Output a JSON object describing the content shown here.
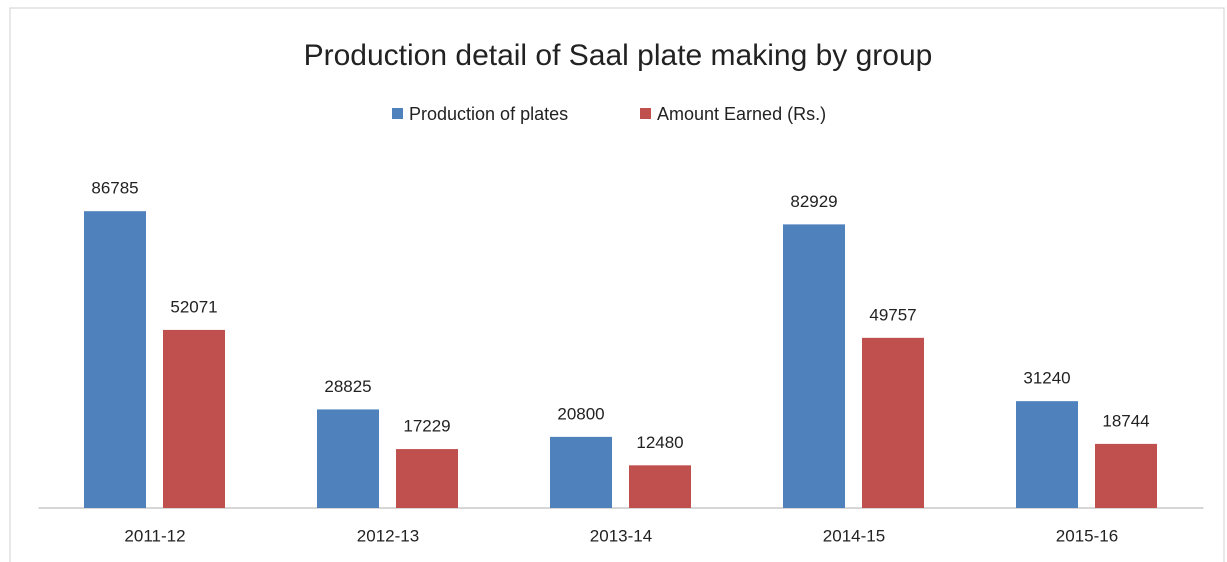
{
  "chart_data": {
    "type": "bar",
    "title": "Production detail of Saal plate making by  group",
    "categories": [
      "2011-12",
      "2012-13",
      "2013-14",
      "2014-15",
      "2015-16"
    ],
    "series": [
      {
        "name": "Production  of plates",
        "color": "#4f81bd",
        "values": [
          86785,
          28825,
          20800,
          82929,
          31240
        ]
      },
      {
        "name": "Amount Earned (Rs.)",
        "color": "#c0504d",
        "values": [
          52071,
          17229,
          12480,
          49757,
          18744
        ]
      }
    ],
    "ylim": [
      0,
      100000
    ],
    "legend": "top"
  }
}
